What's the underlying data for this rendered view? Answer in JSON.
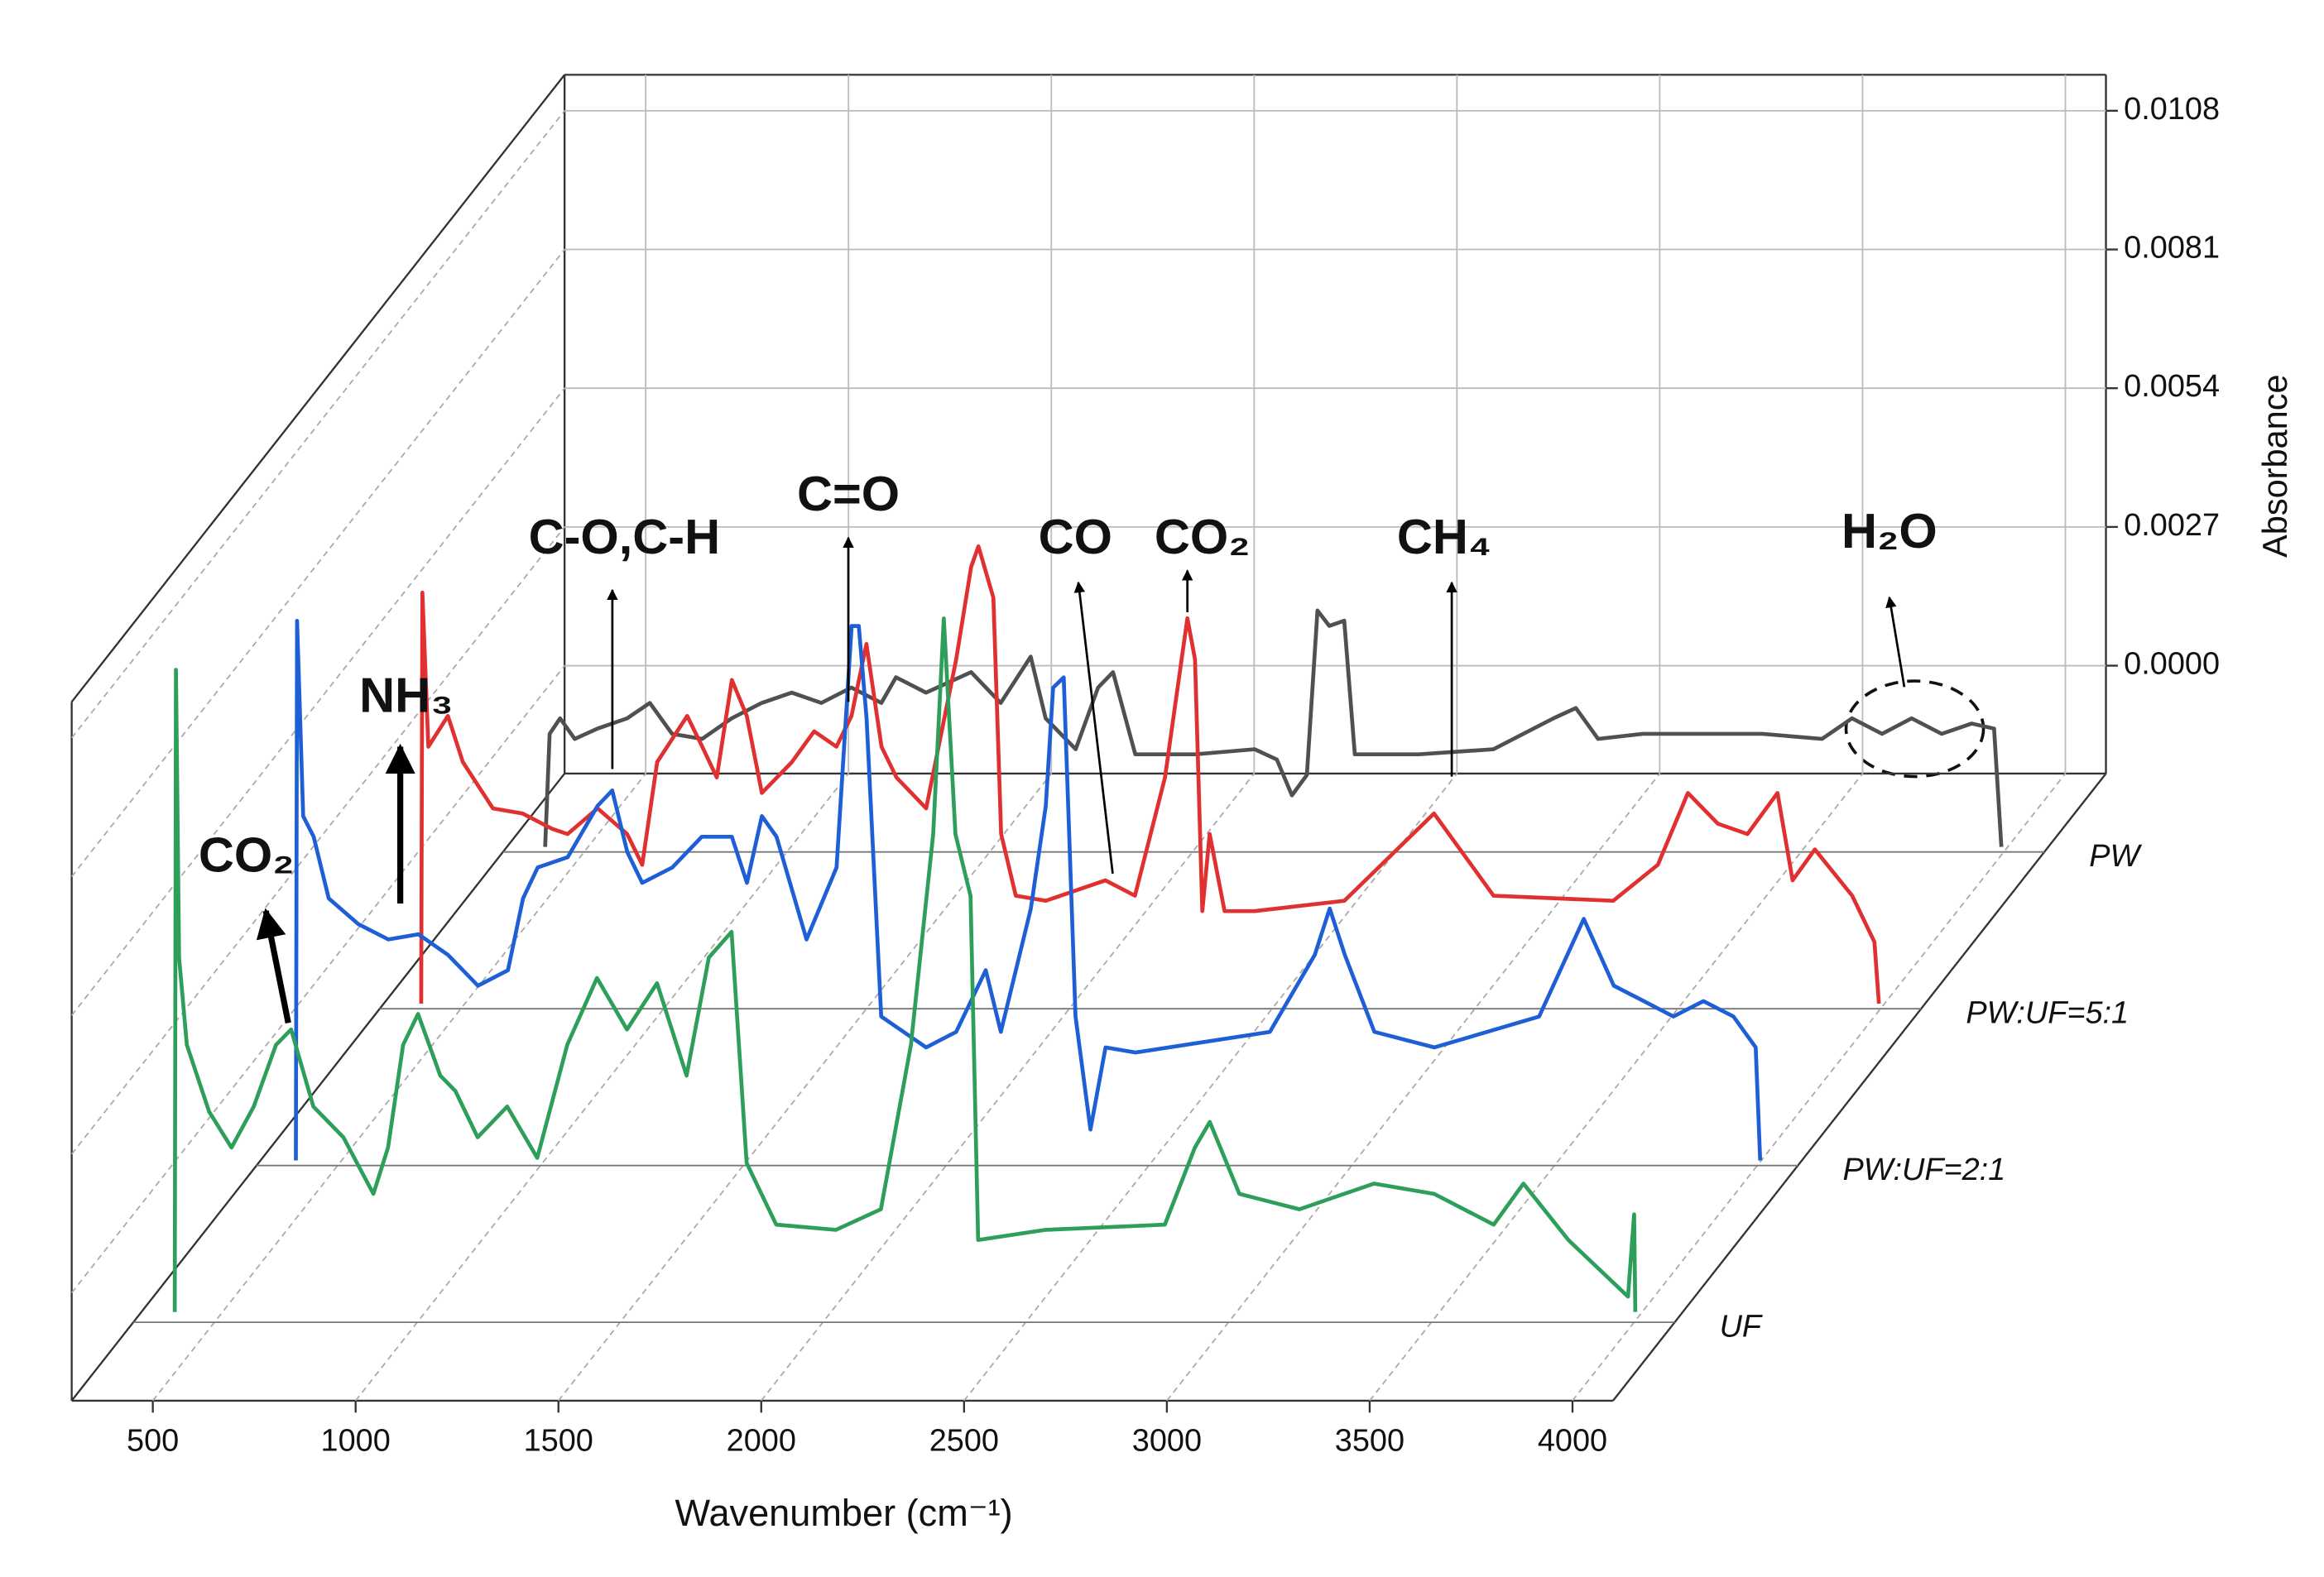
{
  "chart_data": {
    "type": "waterfall",
    "xlabel": "Wavenumber (cm⁻¹)",
    "ylabel": "Absorbance",
    "xlim": [
      300,
      4100
    ],
    "xticks": [
      500,
      1000,
      1500,
      2000,
      2500,
      3000,
      3500,
      4000
    ],
    "ylim": [
      -0.0021,
      0.0115
    ],
    "yticks": [
      {
        "value": 0,
        "label": "0.0000"
      },
      0.0027,
      0.0054,
      0.0081,
      0.0108
    ],
    "grid": true,
    "annotations": [
      "CO₂",
      "NH₃",
      "C-O,C-H",
      "C=O",
      "CO",
      "CO₂",
      "CH₄",
      "H₂O"
    ],
    "series": [
      {
        "name": "UF",
        "color": "#2e9e5b",
        "x": [
          402,
          405,
          413,
          432,
          487,
          542,
          597,
          652,
          689,
          744,
          818,
          892,
          928,
          965,
          1002,
          1057,
          1094,
          1149,
          1222,
          1296,
          1370,
          1443,
          1517,
          1591,
          1664,
          1719,
          1775,
          1812,
          1885,
          2032,
          2143,
          2217,
          2272,
          2298,
          2327,
          2364,
          2383,
          2548,
          2843,
          2917,
          2954,
          3027,
          3175,
          3285,
          3359,
          3507,
          3654,
          3727,
          3838,
          3985,
          4000,
          4003
        ],
        "values": [
          -0.0019,
          0.0106,
          0.005,
          0.0033,
          0.002,
          0.0013,
          0.0021,
          0.0033,
          0.0036,
          0.0021,
          0.0015,
          0.0004,
          0.0013,
          0.0033,
          0.0039,
          0.0027,
          0.0024,
          0.0015,
          0.0021,
          0.0011,
          0.0033,
          0.0046,
          0.0036,
          0.0045,
          0.0027,
          0.005,
          0.0055,
          0.001,
          -0.0002,
          -0.0003,
          0.0001,
          0.0033,
          0.0074,
          0.0116,
          0.0074,
          0.0062,
          -0.0005,
          -0.0003,
          -0.0002,
          0.0013,
          0.0018,
          0.0004,
          0.0001,
          0.0004,
          0.0006,
          0.0004,
          -0.0002,
          0.0006,
          -0.0005,
          -0.0016,
          0,
          -0.0019
        ]
      },
      {
        "name": "PW:UF=2:1",
        "color": "#1f5fd6",
        "x": [
          397,
          400,
          415,
          441,
          478,
          551,
          625,
          699,
          772,
          846,
          920,
          957,
          993,
          1067,
          1141,
          1177,
          1214,
          1251,
          1325,
          1398,
          1472,
          1509,
          1546,
          1582,
          1656,
          1730,
          1767,
          1785,
          1804,
          1840,
          1951,
          2025,
          2098,
          2135,
          2209,
          2246,
          2264,
          2290,
          2319,
          2356,
          2393,
          2467,
          2798,
          2909,
          2946,
          2983,
          3056,
          3204,
          3462,
          3572,
          3646,
          3720,
          3793,
          3867,
          3941,
          3996,
          4007
        ],
        "values": [
          -0.002,
          0.0085,
          0.0047,
          0.0043,
          0.0031,
          0.0026,
          0.0023,
          0.0024,
          0.002,
          0.0014,
          0.0017,
          0.0031,
          0.0037,
          0.0039,
          0.0049,
          0.0052,
          0.004,
          0.0034,
          0.0037,
          0.0043,
          0.0043,
          0.0034,
          0.0047,
          0.0043,
          0.0023,
          0.0037,
          0.0084,
          0.0084,
          0.0066,
          0.0008,
          0.0002,
          0.0005,
          0.0017,
          0.0005,
          0.0029,
          0.0049,
          0.0072,
          0.0074,
          0.0008,
          -0.0014,
          0.0002,
          0.0001,
          0.0005,
          0.002,
          0.0029,
          0.002,
          0.0005,
          0.0002,
          0.0008,
          0.0027,
          0.0014,
          0.0011,
          0.0008,
          0.0011,
          0.0008,
          0.0002,
          -0.002
        ]
      },
      {
        "name": "PW:UF=5:1",
        "color": "#e03030",
        "x": [
          402,
          405,
          420,
          468,
          505,
          579,
          652,
          726,
          763,
          837,
          910,
          947,
          984,
          1058,
          1095,
          1131,
          1168,
          1205,
          1242,
          1316,
          1371,
          1426,
          1463,
          1500,
          1537,
          1574,
          1647,
          1721,
          1758,
          1776,
          1813,
          1832,
          1868,
          1942,
          2089,
          2162,
          2236,
          2291,
          2310,
          2328,
          2346,
          2383,
          2457,
          2678,
          2899,
          3046,
          3341,
          3451,
          3525,
          3599,
          3672,
          3746,
          3783,
          3838,
          3930,
          3985,
          3996
        ],
        "values": [
          -0.002,
          0.006,
          0.003,
          0.0036,
          0.0027,
          0.0018,
          0.0017,
          0.0014,
          0.0013,
          0.0018,
          0.0013,
          0.0007,
          0.0027,
          0.0036,
          0.003,
          0.0024,
          0.0043,
          0.0036,
          0.0021,
          0.0027,
          0.0033,
          0.003,
          0.0036,
          0.005,
          0.003,
          0.0024,
          0.0018,
          0.0047,
          0.0065,
          0.0069,
          0.0059,
          0.0013,
          0.0001,
          0,
          0.0004,
          0.0001,
          0.0024,
          0.0055,
          0.0047,
          -0.0002,
          0.0013,
          -0.0002,
          -0.0002,
          0,
          0.0017,
          0.0001,
          0,
          0.0007,
          0.0021,
          0.0015,
          0.0013,
          0.0021,
          0.0004,
          0.001,
          0.0001,
          -0.0008,
          -0.002
        ]
      },
      {
        "name": "PW",
        "color": "#505050",
        "x": [
          404,
          415,
          441,
          477,
          533,
          606,
          662,
          717,
          791,
          864,
          938,
          1012,
          1085,
          1159,
          1233,
          1269,
          1343,
          1454,
          1527,
          1601,
          1638,
          1712,
          1767,
          1804,
          1859,
          2006,
          2153,
          2208,
          2245,
          2282,
          2308,
          2337,
          2374,
          2400,
          2558,
          2742,
          2890,
          2945,
          3000,
          3110,
          3405,
          3552,
          3626,
          3700,
          3773,
          3847,
          3921,
          3976,
          3994
        ],
        "values": [
          -0.002,
          0.0002,
          0.0005,
          0.0001,
          0.0003,
          0.0005,
          0.0008,
          0.0002,
          0.0001,
          0.0005,
          0.0008,
          0.001,
          0.0008,
          0.0011,
          0.0008,
          0.0013,
          0.001,
          0.0014,
          0.0008,
          0.0017,
          0.0005,
          -0.0001,
          0.0011,
          0.0014,
          -0.0002,
          -0.0002,
          -0.0001,
          -0.0003,
          -0.001,
          -0.0006,
          0.0026,
          0.0023,
          0.0024,
          -0.0002,
          -0.0002,
          -0.0001,
          0.0005,
          0.0007,
          0.0001,
          0.0002,
          0.0002,
          0.0001,
          0.0005,
          0.0002,
          0.0005,
          0.0002,
          0.0004,
          0.0003,
          -0.002
        ]
      }
    ]
  }
}
